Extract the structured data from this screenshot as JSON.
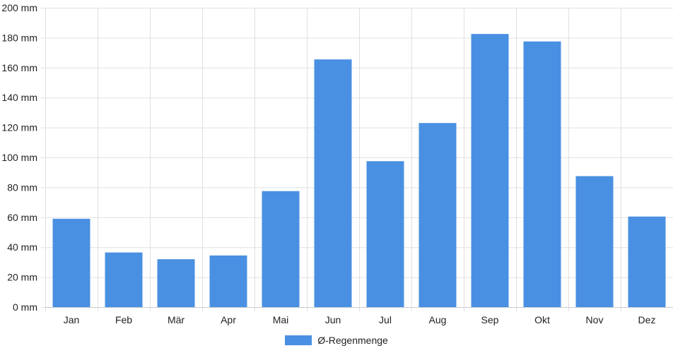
{
  "chart_data": {
    "type": "bar",
    "categories": [
      "Jan",
      "Feb",
      "Mär",
      "Apr",
      "Mai",
      "Jun",
      "Jul",
      "Aug",
      "Sep",
      "Okt",
      "Nov",
      "Dez"
    ],
    "series": [
      {
        "name": "Ø-Regenmenge",
        "values": [
          59,
          36.5,
          32,
          34.5,
          77.5,
          165.5,
          97.5,
          123,
          182.5,
          177.5,
          87.5,
          60.5
        ]
      }
    ],
    "y_ticks": [
      0,
      20,
      40,
      60,
      80,
      100,
      120,
      140,
      160,
      180,
      200
    ],
    "y_unit": "mm",
    "ylim": [
      0,
      200
    ],
    "grid": true,
    "legend_position": "bottom-center",
    "colors": {
      "bar": "#4a90e2",
      "grid": "#e0e0e0",
      "axis": "#cccccc",
      "text": "#222222"
    }
  }
}
